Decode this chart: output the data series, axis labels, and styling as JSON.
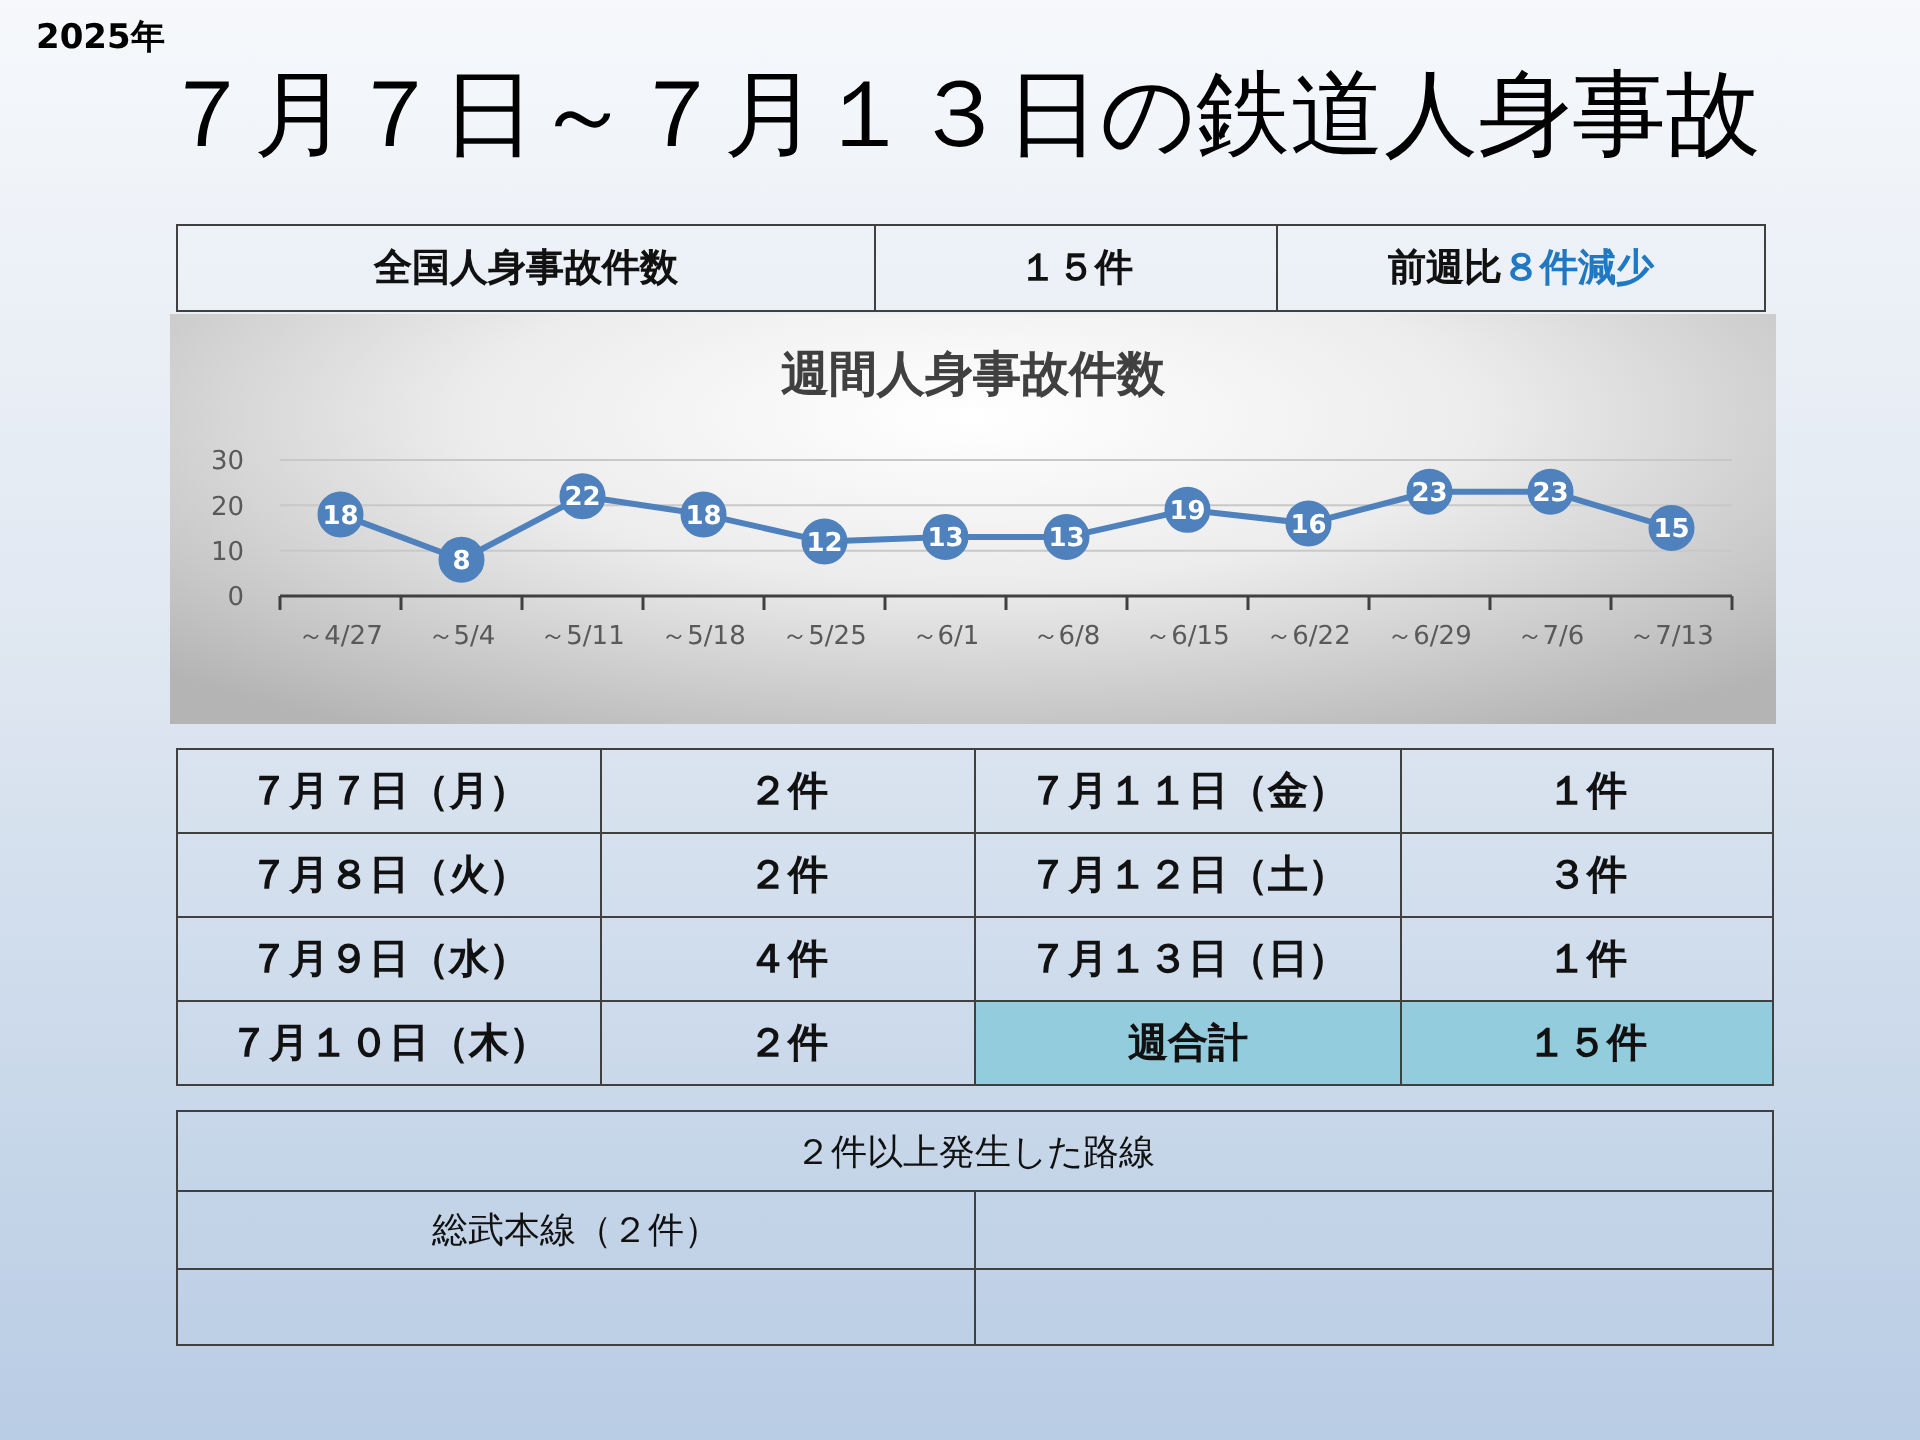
{
  "chart_data": [
    {
      "type": "other",
      "subtitle": "2025年",
      "title": "７月７日～７月１３日の鉄道人身事故",
      "annotations": [
        "全国人身事故件数",
        "１５件",
        "前週比",
        "８件減少"
      ]
    },
    {
      "type": "line",
      "title": "週間人身事故件数",
      "categories": [
        "～4/27",
        "～5/4",
        "～5/11",
        "～5/18",
        "～5/25",
        "～6/1",
        "～6/8",
        "～6/15",
        "～6/22",
        "～6/29",
        "～7/6",
        "～7/13"
      ],
      "values": [
        18,
        8,
        22,
        18,
        12,
        13,
        13,
        19,
        16,
        23,
        23,
        15
      ],
      "color": "#4f81bd",
      "ylim": [
        0,
        30
      ],
      "yticks": [
        0,
        10,
        20,
        30
      ],
      "grid": "y",
      "marker": "circle",
      "data_labels": true
    },
    {
      "type": "other",
      "annotations": [
        "７月７日（月）",
        "２件",
        "７月１１日（金）",
        "１件",
        "７月８日（火）",
        "２件",
        "７月１２日（土）",
        "３件",
        "７月９日（水）",
        "４件",
        "７月１３日（日）",
        "１件",
        "７月１０日（木）",
        "２件",
        "週合計",
        "１５件"
      ]
    },
    {
      "type": "other",
      "title": "２件以上発生した路線",
      "annotations": [
        "総武本線（２件）"
      ]
    }
  ]
}
